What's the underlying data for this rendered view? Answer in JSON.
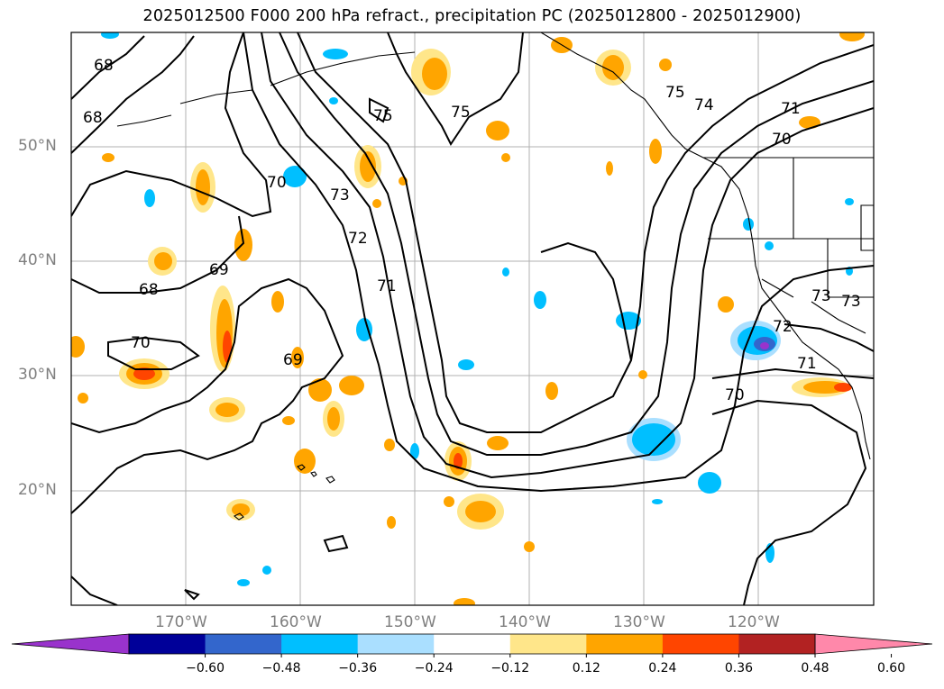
{
  "title": "2025012500 F000 200 hPa refract., precipitation PC (2025012800 - 2025012900)",
  "lat_labels": [
    "50°N",
    "40°N",
    "30°N",
    "20°N"
  ],
  "lon_labels": [
    "170°W",
    "160°W",
    "150°W",
    "140°W",
    "130°W",
    "120°W"
  ],
  "contour_labels": [
    "68",
    "68",
    "75",
    "75",
    "75",
    "74",
    "71",
    "70",
    "70",
    "73",
    "72",
    "71",
    "69",
    "68",
    "70",
    "69",
    "73",
    "73",
    "72",
    "71",
    "70"
  ],
  "colorbar": {
    "ticks": [
      "−0.60",
      "−0.48",
      "−0.36",
      "−0.24",
      "−0.12",
      "0.12",
      "0.24",
      "0.36",
      "0.48",
      "0.60"
    ],
    "colors": [
      "#9933cc",
      "#000099",
      "#3366cc",
      "#00bfff",
      "#aadfff",
      "#ffffff",
      "#ffe68a",
      "#ffa500",
      "#ff4500",
      "#b22222",
      "#ff88aa"
    ]
  }
}
